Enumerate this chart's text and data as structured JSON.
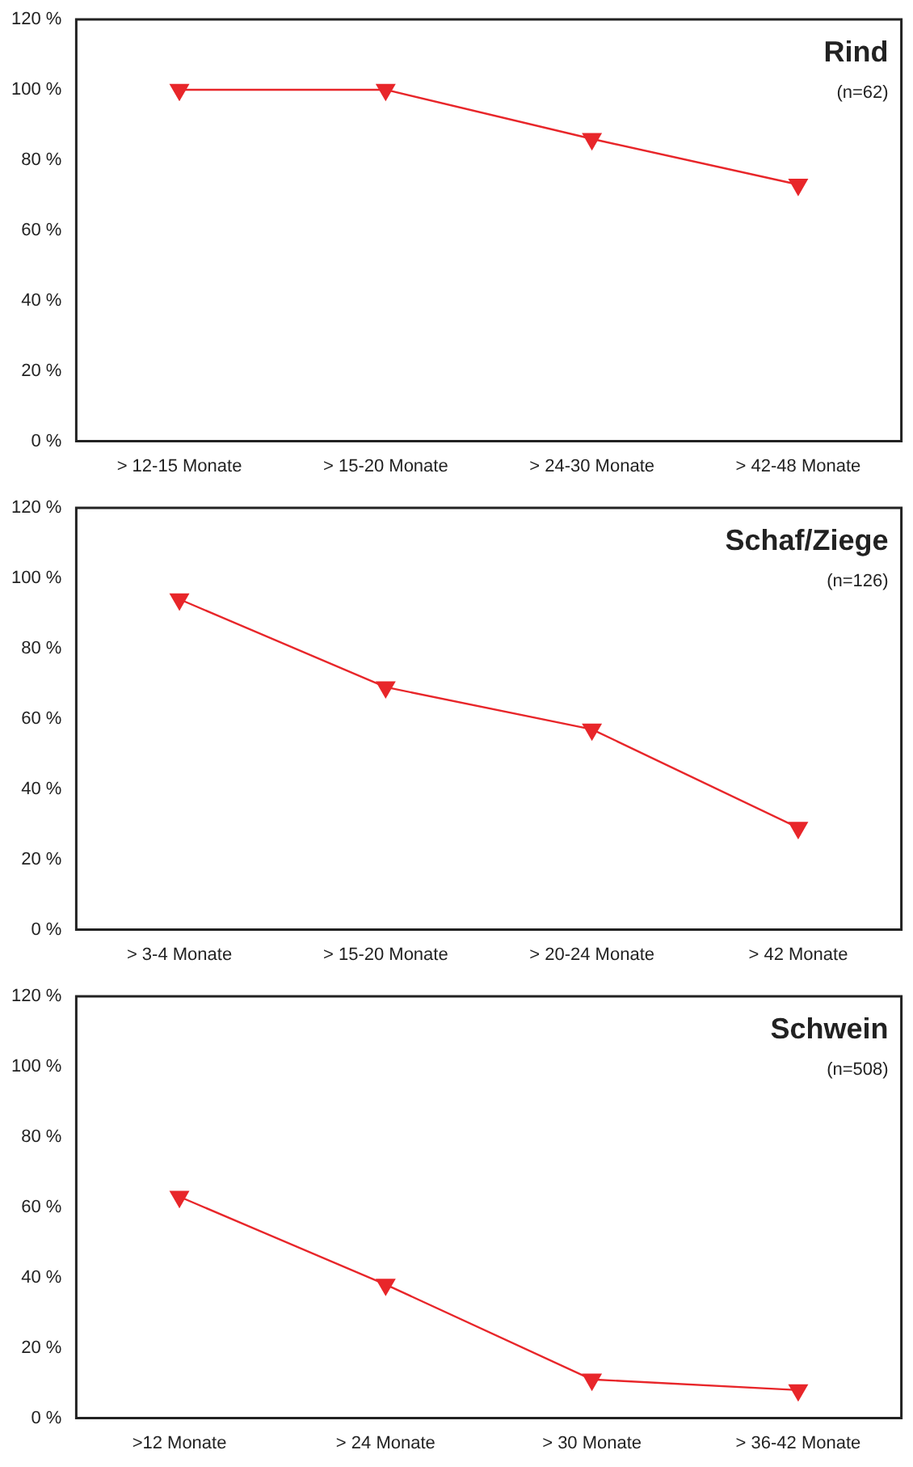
{
  "chart_data": [
    {
      "type": "line",
      "title": "Rind",
      "subtitle": "(n=62)",
      "categories": [
        "> 12-15 Monate",
        "> 15-20 Monate",
        "> 24-30 Monate",
        "> 42-48 Monate"
      ],
      "series": [
        {
          "color": "#e8262a",
          "values": [
            100,
            100,
            86,
            73
          ]
        }
      ],
      "ylim": [
        0,
        120
      ],
      "yticks": [
        {
          "value": 0,
          "label": "0 %"
        },
        {
          "value": 20,
          "label": "20 %"
        },
        {
          "value": 40,
          "label": "40 %"
        },
        {
          "value": 60,
          "label": "60 %"
        },
        {
          "value": 80,
          "label": "80 %"
        },
        {
          "value": 100,
          "label": "100 %"
        },
        {
          "value": 120,
          "label": "120 %"
        }
      ],
      "grid": false,
      "legend": false,
      "marker": "triangle",
      "line_style": "solid"
    },
    {
      "type": "line",
      "title": "Schaf/Ziege",
      "subtitle": "(n=126)",
      "categories": [
        "> 3-4 Monate",
        "> 15-20 Monate",
        "> 20-24 Monate",
        "> 42 Monate"
      ],
      "series": [
        {
          "color": "#e8262a",
          "values": [
            94,
            69,
            57,
            29
          ]
        }
      ],
      "ylim": [
        0,
        120
      ],
      "yticks": [
        {
          "value": 0,
          "label": "0 %"
        },
        {
          "value": 20,
          "label": "20 %"
        },
        {
          "value": 40,
          "label": "40 %"
        },
        {
          "value": 60,
          "label": "60 %"
        },
        {
          "value": 80,
          "label": "80 %"
        },
        {
          "value": 100,
          "label": "100 %"
        },
        {
          "value": 120,
          "label": "120 %"
        }
      ],
      "grid": false,
      "legend": false,
      "marker": "triangle",
      "line_style": "solid"
    },
    {
      "type": "line",
      "title": "Schwein",
      "subtitle": "(n=508)",
      "categories": [
        ">12 Monate",
        "> 24 Monate",
        "> 30 Monate",
        "> 36-42 Monate"
      ],
      "series": [
        {
          "color": "#e8262a",
          "values": [
            63,
            38,
            11,
            8
          ]
        }
      ],
      "ylim": [
        0,
        120
      ],
      "yticks": [
        {
          "value": 0,
          "label": "0 %"
        },
        {
          "value": 20,
          "label": "20 %"
        },
        {
          "value": 40,
          "label": "40 %"
        },
        {
          "value": 60,
          "label": "60 %"
        },
        {
          "value": 80,
          "label": "80 %"
        },
        {
          "value": 100,
          "label": "100 %"
        },
        {
          "value": 120,
          "label": "120 %"
        }
      ],
      "grid": false,
      "legend": false,
      "marker": "triangle",
      "line_style": "solid"
    }
  ]
}
